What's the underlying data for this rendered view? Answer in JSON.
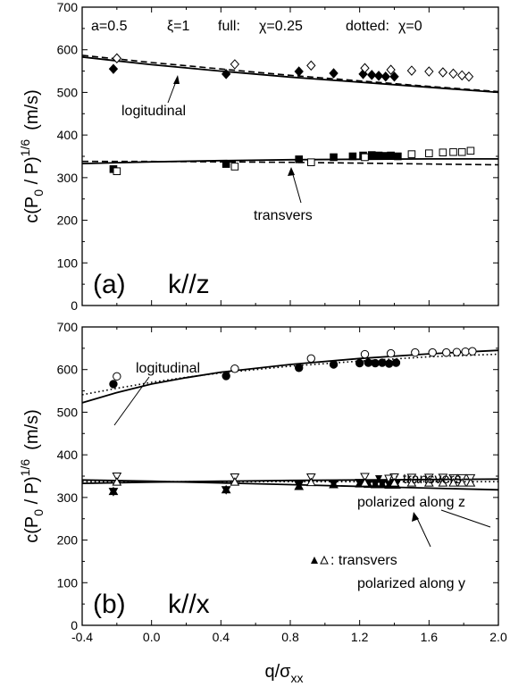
{
  "chart_data": [
    {
      "type": "scatter",
      "panel": "(a)",
      "direction": "k//z",
      "header": {
        "a": "a=0.5",
        "xi": "ξ=1",
        "full": "full:",
        "chi_full": "χ=0.25",
        "dotted": "dotted:",
        "chi_dotted": "χ=0"
      },
      "xlim": [
        -0.4,
        2.0
      ],
      "ylim": [
        0,
        700
      ],
      "y_ticks": [
        0,
        100,
        200,
        300,
        400,
        500,
        600,
        700
      ],
      "annotations": [
        "logitudinal",
        "transvers"
      ],
      "series": [
        {
          "group": "longitudinal",
          "marker": "diamond-filled",
          "points": [
            [
              -0.22,
              555
            ],
            [
              0.43,
              543
            ],
            [
              0.85,
              549
            ],
            [
              1.05,
              545
            ],
            [
              1.22,
              543
            ],
            [
              1.27,
              541
            ],
            [
              1.31,
              539
            ],
            [
              1.35,
              537
            ],
            [
              1.4,
              537
            ]
          ]
        },
        {
          "group": "longitudinal",
          "marker": "diamond-open",
          "points": [
            [
              -0.2,
              580
            ],
            [
              0.48,
              566
            ],
            [
              0.92,
              563
            ],
            [
              1.23,
              557
            ],
            [
              1.38,
              553
            ],
            [
              1.5,
              551
            ],
            [
              1.6,
              549
            ],
            [
              1.68,
              547
            ],
            [
              1.74,
              544
            ],
            [
              1.79,
              540
            ],
            [
              1.83,
              537
            ]
          ]
        },
        {
          "group": "longitudinal",
          "line": "solid",
          "points": [
            [
              -0.4,
              583
            ],
            [
              0.0,
              565
            ],
            [
              0.4,
              550
            ],
            [
              0.8,
              536
            ],
            [
              1.2,
              524
            ],
            [
              1.6,
              512
            ],
            [
              2.0,
              500
            ]
          ]
        },
        {
          "group": "longitudinal",
          "line": "dashed",
          "points": [
            [
              -0.4,
              587
            ],
            [
              0.0,
              570
            ],
            [
              0.4,
              555
            ],
            [
              0.8,
              540
            ],
            [
              1.2,
              527
            ],
            [
              1.6,
              514
            ],
            [
              2.0,
              502
            ]
          ]
        },
        {
          "group": "transverse",
          "marker": "square-filled",
          "points": [
            [
              -0.22,
              320
            ],
            [
              0.43,
              332
            ],
            [
              0.85,
              343
            ],
            [
              1.05,
              348
            ],
            [
              1.16,
              350
            ],
            [
              1.22,
              352
            ],
            [
              1.27,
              353
            ],
            [
              1.31,
              352
            ],
            [
              1.35,
              351
            ],
            [
              1.38,
              352
            ],
            [
              1.42,
              350
            ]
          ]
        },
        {
          "group": "transverse",
          "marker": "square-open",
          "points": [
            [
              -0.2,
              315
            ],
            [
              0.48,
              326
            ],
            [
              0.92,
              336
            ],
            [
              1.23,
              348
            ],
            [
              1.5,
              355
            ],
            [
              1.6,
              357
            ],
            [
              1.68,
              359
            ],
            [
              1.74,
              360
            ],
            [
              1.79,
              360
            ],
            [
              1.84,
              363
            ]
          ]
        },
        {
          "group": "transverse",
          "line": "solid",
          "points": [
            [
              -0.4,
              333
            ],
            [
              0.0,
              337
            ],
            [
              0.4,
              340
            ],
            [
              0.8,
              342
            ],
            [
              1.2,
              343
            ],
            [
              1.6,
              344
            ],
            [
              2.0,
              344
            ]
          ]
        },
        {
          "group": "transverse",
          "line": "dashed",
          "points": [
            [
              -0.4,
              338
            ],
            [
              0.0,
              338
            ],
            [
              0.4,
              337
            ],
            [
              0.8,
              336
            ],
            [
              1.2,
              334
            ],
            [
              1.6,
              332
            ],
            [
              2.0,
              330
            ]
          ]
        }
      ]
    },
    {
      "type": "scatter",
      "panel": "(b)",
      "direction": "k//x",
      "xlim": [
        -0.4,
        2.0
      ],
      "ylim": [
        0,
        700
      ],
      "y_ticks": [
        0,
        100,
        200,
        300,
        400,
        500,
        600,
        700
      ],
      "x_ticks": [
        -0.4,
        0.0,
        0.4,
        0.8,
        1.2,
        1.6,
        2.0
      ],
      "x_tick_labels": [
        "-0.4",
        "0.0",
        "0.4",
        "0.8",
        "1.2",
        "1.6",
        "2.0"
      ],
      "xlabel": "q/σ",
      "xlabel_sub": "xx",
      "annotations": [
        "logitudinal",
        ": transvers",
        "polarized along z",
        ": transvers",
        "polarized along y"
      ],
      "series": [
        {
          "group": "longitudinal",
          "marker": "circle-filled",
          "points": [
            [
              -0.22,
              566
            ],
            [
              0.43,
              585
            ],
            [
              0.85,
              604
            ],
            [
              1.05,
              612
            ],
            [
              1.2,
              615
            ],
            [
              1.25,
              616
            ],
            [
              1.29,
              615
            ],
            [
              1.33,
              616
            ],
            [
              1.37,
              614
            ],
            [
              1.41,
              616
            ]
          ]
        },
        {
          "group": "longitudinal",
          "marker": "circle-open",
          "points": [
            [
              -0.2,
              584
            ],
            [
              0.48,
              602
            ],
            [
              0.92,
              626
            ],
            [
              1.23,
              636
            ],
            [
              1.38,
              638
            ],
            [
              1.52,
              640
            ],
            [
              1.62,
              640
            ],
            [
              1.7,
              640
            ],
            [
              1.76,
              641
            ],
            [
              1.81,
              642
            ],
            [
              1.85,
              643
            ]
          ]
        },
        {
          "group": "longitudinal",
          "line": "solid",
          "points": [
            [
              -0.4,
              522
            ],
            [
              -0.2,
              546
            ],
            [
              0.0,
              566
            ],
            [
              0.2,
              581
            ],
            [
              0.4,
              594
            ],
            [
              0.8,
              612
            ],
            [
              1.2,
              626
            ],
            [
              1.6,
              637
            ],
            [
              2.0,
              645
            ]
          ]
        },
        {
          "group": "longitudinal",
          "line": "dotted",
          "points": [
            [
              -0.4,
              541
            ],
            [
              -0.2,
              556
            ],
            [
              0.0,
              570
            ],
            [
              0.2,
              582
            ],
            [
              0.4,
              592
            ],
            [
              0.8,
              608
            ],
            [
              1.2,
              620
            ],
            [
              1.6,
              630
            ],
            [
              2.0,
              636
            ]
          ]
        },
        {
          "group": "transverse-z",
          "marker": "triangle-down-filled",
          "points": [
            [
              -0.22,
              314
            ],
            [
              0.43,
              318
            ],
            [
              0.85,
              330
            ],
            [
              1.05,
              333
            ],
            [
              1.2,
              335
            ],
            [
              1.25,
              334
            ],
            [
              1.29,
              333
            ],
            [
              1.33,
              333
            ],
            [
              1.37,
              332
            ],
            [
              1.41,
              332
            ]
          ]
        },
        {
          "group": "transverse-z",
          "marker": "triangle-down-open",
          "points": [
            [
              -0.2,
              350
            ],
            [
              0.48,
              348
            ],
            [
              0.92,
              348
            ],
            [
              1.23,
              349
            ],
            [
              1.4,
              348
            ],
            [
              1.5,
              347
            ],
            [
              1.6,
              347
            ],
            [
              1.68,
              347
            ],
            [
              1.74,
              346
            ],
            [
              1.79,
              346
            ],
            [
              1.84,
              346
            ]
          ]
        },
        {
          "group": "transverse-y",
          "marker": "triangle-up-filled",
          "points": [
            [
              -0.22,
              314
            ],
            [
              0.43,
              318
            ],
            [
              0.85,
              326
            ],
            [
              1.05,
              330
            ],
            [
              1.2,
              332
            ],
            [
              1.25,
              331
            ],
            [
              1.29,
              330
            ],
            [
              1.33,
              330
            ],
            [
              1.37,
              329
            ],
            [
              1.41,
              329
            ]
          ]
        },
        {
          "group": "transverse-y",
          "marker": "triangle-up-open",
          "points": [
            [
              -0.2,
              336
            ],
            [
              0.48,
              336
            ],
            [
              0.92,
              335
            ],
            [
              1.23,
              334
            ],
            [
              1.4,
              334
            ],
            [
              1.5,
              334
            ],
            [
              1.6,
              334
            ],
            [
              1.68,
              334
            ],
            [
              1.74,
              334
            ],
            [
              1.79,
              334
            ],
            [
              1.84,
              334
            ]
          ]
        },
        {
          "group": "transverse-z",
          "line": "solid",
          "points": [
            [
              -0.4,
              333
            ],
            [
              0.0,
              336
            ],
            [
              0.4,
              338
            ],
            [
              0.8,
              340
            ],
            [
              1.2,
              341
            ],
            [
              1.6,
              342
            ],
            [
              2.0,
              343
            ]
          ]
        },
        {
          "group": "transverse-y",
          "line": "solid",
          "points": [
            [
              -0.4,
              341
            ],
            [
              0.0,
              338
            ],
            [
              0.4,
              334
            ],
            [
              0.8,
              330
            ],
            [
              1.2,
              326
            ],
            [
              1.6,
              322
            ],
            [
              2.0,
              318
            ]
          ]
        },
        {
          "group": "transverse",
          "line": "dotted",
          "points": [
            [
              -0.4,
              337
            ],
            [
              0.0,
              337
            ],
            [
              0.4,
              337
            ],
            [
              0.8,
              337
            ],
            [
              1.2,
              337
            ],
            [
              1.6,
              337
            ],
            [
              2.0,
              337
            ]
          ]
        }
      ]
    }
  ],
  "ylabel": {
    "c": "c(P",
    "sub0": "0",
    "slash": " / P)",
    "exp": "1/6",
    "unit": "(m/s)"
  }
}
